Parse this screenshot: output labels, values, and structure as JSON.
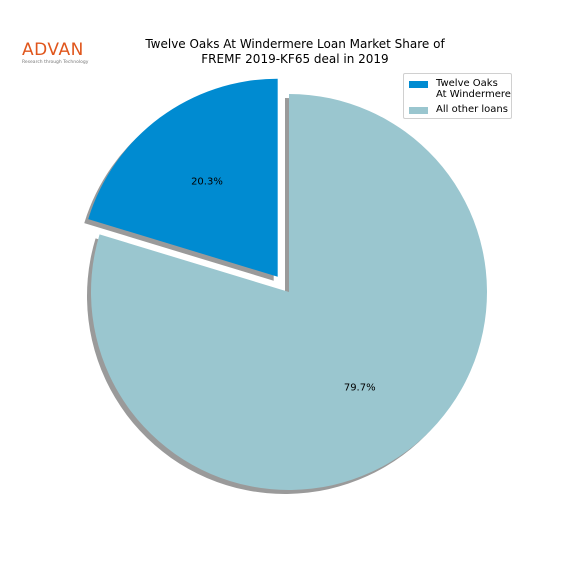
{
  "logo": {
    "brand": "ADVAN",
    "tagline": "Research through Technology"
  },
  "chart_data": {
    "type": "pie",
    "title_lines": [
      "Twelve Oaks At Windermere Loan Market Share of",
      "FREMF 2019-KF65 deal in 2019"
    ],
    "slices": [
      {
        "label": "Twelve Oaks At Windermere",
        "value": 20.3,
        "pct_label": "20.3%",
        "color": "#008bd1",
        "explode": true
      },
      {
        "label": "All other loans",
        "value": 79.7,
        "pct_label": "79.7%",
        "color": "#9ac6cf",
        "explode": false
      }
    ],
    "legend": {
      "placement": "top-right",
      "entries": [
        {
          "lines": [
            "Twelve Oaks",
            "At Windermere"
          ]
        },
        {
          "lines": [
            "All other loans"
          ]
        }
      ]
    },
    "shadow": true,
    "start_angle_deg": 90
  }
}
